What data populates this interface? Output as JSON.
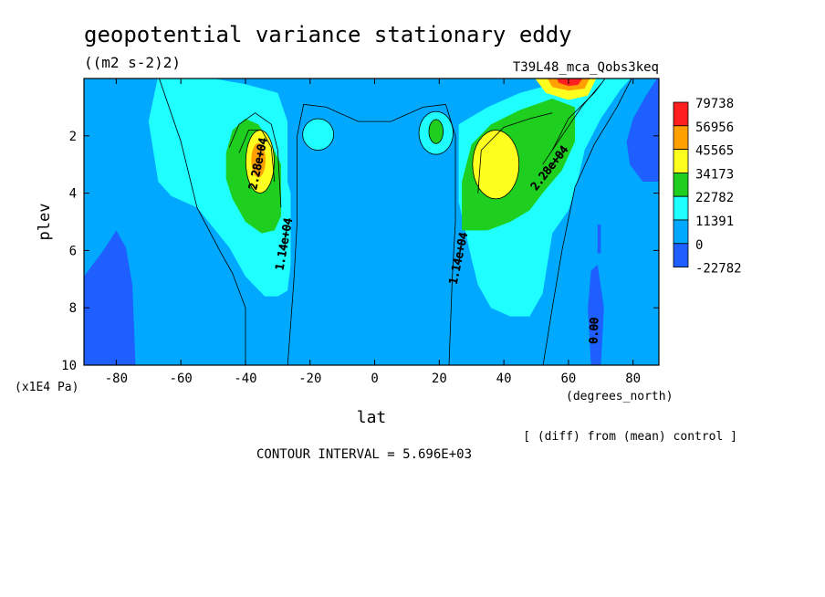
{
  "header": {
    "title": "geopotential variance stationary eddy",
    "units": "((m2 s-2)2)",
    "experiment": "T39L48_mca_Qobs3keq"
  },
  "footer": {
    "diff_note": "[ (diff) from (mean) control ]",
    "contour_interval": "CONTOUR INTERVAL = 5.696E+03"
  },
  "colors": {
    "levels": [
      "#ff1f1f",
      "#ff9f00",
      "#ffff1f",
      "#1fcf1f",
      "#1fffff",
      "#00a9ff",
      "#1f5fff"
    ],
    "frame": "#000000"
  },
  "chart_data": {
    "type": "contour",
    "title": "geopotential variance stationary eddy",
    "xlabel": "lat",
    "xunits": "(degrees_north)",
    "ylabel": "plev",
    "yunits": "(x1E4 Pa)",
    "xlim": [
      -90,
      88
    ],
    "ylim": [
      10,
      0
    ],
    "xticks": [
      -80,
      -60,
      -40,
      -20,
      0,
      20,
      40,
      60,
      80
    ],
    "yticks": [
      2,
      4,
      6,
      8,
      10
    ],
    "colorbar_labels": [
      "79738",
      "56956",
      "45565",
      "34173",
      "22782",
      "11391",
      "0",
      "-22782"
    ],
    "contour_labels": [
      {
        "text": "2.28e+04",
        "lat": -35,
        "plev": 3.0
      },
      {
        "text": "1.14e+04",
        "lat": -27,
        "plev": 5.8
      },
      {
        "text": "1.14e+04",
        "lat": 27,
        "plev": 6.3
      },
      {
        "text": "2.28e+04",
        "lat": 55,
        "plev": 3.2
      },
      {
        "text": "0.00",
        "lat": 69,
        "plev": 8.8
      }
    ],
    "features": [
      {
        "lat": -36,
        "plev": 2.8,
        "max_level": "45565"
      },
      {
        "lat": 36,
        "plev": 3.0,
        "max_level": "34173"
      },
      {
        "lat": 60,
        "plev": 0.2,
        "max_level": "79738"
      },
      {
        "lat": -18,
        "plev": 1.9,
        "max_level": "11391"
      },
      {
        "lat": 19,
        "plev": 1.8,
        "max_level": "22782"
      },
      {
        "lat": -85,
        "plev": 8.5,
        "min_level": "-22782"
      },
      {
        "lat": 85,
        "plev": 1.0,
        "min_level": "-22782"
      }
    ]
  }
}
